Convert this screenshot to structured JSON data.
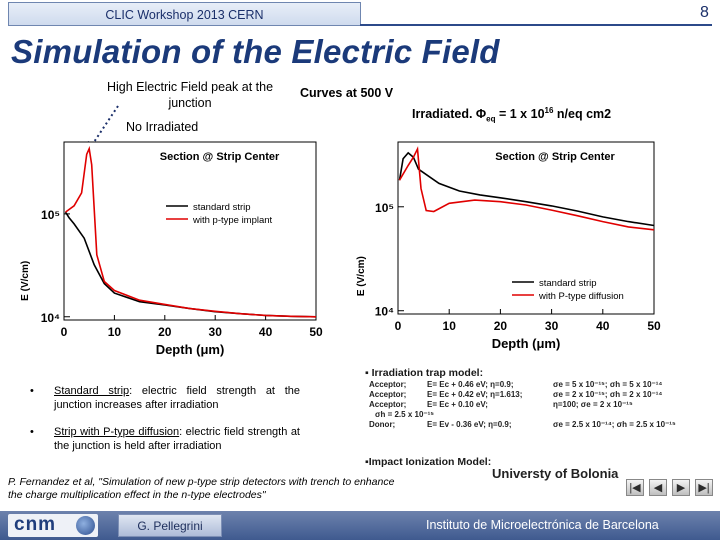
{
  "header": {
    "workshop": "CLIC Workshop 2013 CERN",
    "slide_number": "8"
  },
  "title": "Simulation of the Electric Field",
  "annotations": {
    "peak": "High Electric Field peak at the junction",
    "curves": "Curves at 500 V",
    "no_irradiated": "No Irradiated",
    "irradiated_prefix": "Irradiated. Φ",
    "irradiated_sub": "eq",
    "irradiated_mid": " = 1 x 10",
    "irradiated_exp": "16",
    "irradiated_suffix": " n/eq cm2"
  },
  "chart_data": [
    {
      "type": "line",
      "title": "Section @ Strip Center",
      "xlabel": "Depth (μm)",
      "ylabel": "E (V/cm)",
      "xlim": [
        0,
        50
      ],
      "x_ticks": [
        "0",
        "10",
        "20",
        "30",
        "40",
        "50"
      ],
      "y_log": true,
      "y_tick_labels": [
        "10⁴",
        "10⁵"
      ],
      "legend_position": "right",
      "series": [
        {
          "name": "standard strip",
          "color": "#000000",
          "x": [
            0.3,
            1,
            2,
            4,
            6,
            8,
            10,
            15,
            20,
            25,
            30,
            35,
            40,
            45,
            50
          ],
          "y": [
            104000,
            92000,
            80000,
            58000,
            32000,
            21000,
            17000,
            14000,
            13000,
            12000,
            11200,
            10700,
            10300,
            10100,
            10000
          ]
        },
        {
          "name": "with p-type implant",
          "color": "#e00000",
          "x": [
            0.3,
            2,
            3.5,
            4.5,
            5,
            5.5,
            6.5,
            8,
            10,
            15,
            20,
            25,
            30,
            35,
            40,
            45,
            50
          ],
          "y": [
            104000,
            120000,
            160000,
            380000,
            430000,
            300000,
            40000,
            22000,
            18000,
            14500,
            13200,
            12000,
            11300,
            10700,
            10300,
            10100,
            10000
          ]
        }
      ]
    },
    {
      "type": "line",
      "title": "Section @ Strip Center",
      "xlabel": "Depth (μm)",
      "ylabel": "E (V/cm)",
      "xlim": [
        0,
        50
      ],
      "x_ticks": [
        "0",
        "10",
        "20",
        "30",
        "40",
        "50"
      ],
      "y_log": true,
      "y_tick_labels": [
        "10⁴",
        "10⁵"
      ],
      "legend_position": "bottom-right",
      "series": [
        {
          "name": "standard strip",
          "color": "#000000",
          "x": [
            0.3,
            1,
            2,
            3,
            4,
            8,
            12,
            16,
            20,
            25,
            30,
            35,
            40,
            45,
            50
          ],
          "y": [
            180000,
            290000,
            330000,
            300000,
            230000,
            168000,
            142000,
            130000,
            122000,
            112000,
            102000,
            91000,
            80000,
            72000,
            66000
          ]
        },
        {
          "name": "with P-type diffusion",
          "color": "#e00000",
          "x": [
            0.3,
            2,
            3,
            3.8,
            4.5,
            5.5,
            7,
            10,
            15,
            20,
            25,
            30,
            35,
            40,
            45,
            50
          ],
          "y": [
            180000,
            250000,
            300000,
            360000,
            150000,
            92000,
            90000,
            108000,
            116000,
            112000,
            104000,
            93000,
            82000,
            72000,
            64000,
            60000
          ]
        }
      ]
    }
  ],
  "bullets": [
    {
      "underlined": "Standard strip",
      "rest": ": electric field strength at the junction increases after irradiation"
    },
    {
      "underlined": "Strip with P-type diffusion",
      "rest": ": electric field strength at the junction is held after irradiation"
    }
  ],
  "irradiation_model": {
    "title": "▪ Irradiation trap model:",
    "rows": [
      {
        "type": "Acceptor;",
        "energy": "E= Ec + 0.46 eV; η=0.9;",
        "sigma": "σe = 5 x 10⁻¹⁵;  σh = 5 x 10⁻¹⁴"
      },
      {
        "type": "Acceptor;",
        "energy": "E= Ec + 0.42 eV; η=1.613;",
        "sigma": "σe = 2 x 10⁻¹⁵;  σh = 2 x 10⁻¹⁴"
      },
      {
        "type": "Acceptor;",
        "energy": "E= Ec + 0.10 eV;",
        "sigma": "η=100;   σe = 2 x 10⁻¹⁵"
      },
      {
        "type": "",
        "energy": "σh = 2.5 x 10⁻¹⁵",
        "sigma": ""
      },
      {
        "type": "Donor;",
        "energy": "E= Ev - 0.36 eV; η=0.9;",
        "sigma": "σe = 2.5 x 10⁻¹⁴;  σh = 2.5 x 10⁻¹⁵"
      }
    ],
    "impact_title": "▪Impact Ionization Model:"
  },
  "reference": "P. Fernandez et al, \"Simulation of new p-type strip detectors with trench to enhance the charge multiplication effect in the n-type electrodes\"",
  "university": "Universty of Bolonia",
  "nav": {
    "first": "|◀",
    "prev": "◀",
    "next": "▶",
    "last": "▶|"
  },
  "footer": {
    "logo": "cnm",
    "author": "G. Pellegrini",
    "institute": "Instituto de Microelectrónica de Barcelona"
  }
}
